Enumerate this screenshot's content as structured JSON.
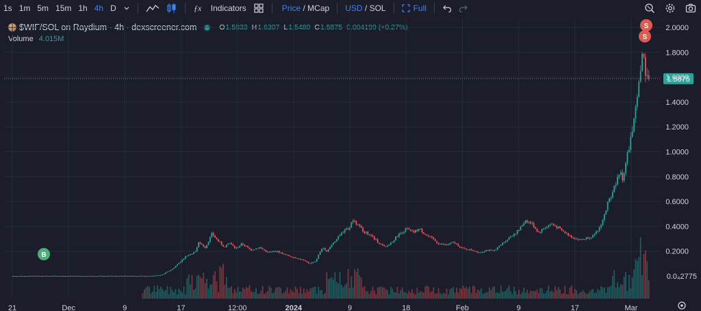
{
  "toolbar": {
    "timeframes": [
      {
        "label": "1s",
        "active": false
      },
      {
        "label": "1m",
        "active": false
      },
      {
        "label": "5m",
        "active": false
      },
      {
        "label": "15m",
        "active": false
      },
      {
        "label": "1h",
        "active": false
      },
      {
        "label": "4h",
        "active": true
      },
      {
        "label": "D",
        "active": false
      }
    ],
    "indicators_label": "Indicators",
    "price_label": "Price",
    "slash1": "/",
    "mcap_label": "MCap",
    "usd_label": "USD",
    "slash2": "/",
    "sol_label": "SOL",
    "full_label": "Full",
    "icons": [
      "chevron-down-icon",
      "line-chart-icon",
      "candles-icon",
      "fx-icon",
      "layout-grid-icon",
      "expand-icon",
      "undo-icon",
      "redo-icon",
      "zoom-icon",
      "gear-icon",
      "camera-icon"
    ]
  },
  "legend": {
    "pair": "$WIF/SOL on Raydium · 4h · dexscreener.com",
    "o_label": "O",
    "o_value": "1.5833",
    "h_label": "H",
    "h_value": "1.6307",
    "l_label": "L",
    "l_value": "1.5480",
    "c_label": "C",
    "c_value": "1.5875",
    "change": "0.004199 (+0.27%)"
  },
  "volume": {
    "label": "Volume",
    "value": "4.015M"
  },
  "markers": {
    "buy": "B",
    "sell": "S"
  },
  "colors": {
    "background": "#1b1d2b",
    "up": "#26a69a",
    "down": "#ef5350",
    "price_tag": "#26a69a",
    "active": "#3b82f6"
  },
  "chart_data": {
    "type": "candlestick",
    "title": "$WIF/SOL on Raydium · 4h · dexscreener.com",
    "ylim": [
      0,
      2.1
    ],
    "y_ticks": [
      {
        "value": 2.0,
        "label": "2.0000"
      },
      {
        "value": 1.8,
        "label": "1.8000"
      },
      {
        "value": 1.6,
        "label": "1.6000"
      },
      {
        "value": 1.4,
        "label": "1.4000"
      },
      {
        "value": 1.2,
        "label": "1.2000"
      },
      {
        "value": 1.0,
        "label": "1.0000"
      },
      {
        "value": 0.8,
        "label": "0.8000"
      },
      {
        "value": 0.6,
        "label": "0.6000"
      },
      {
        "value": 0.4,
        "label": "0.4000"
      },
      {
        "value": 0.2,
        "label": "0.2000"
      }
    ],
    "bottom_label": {
      "value": 0.0,
      "label": "0.0₄2775"
    },
    "current_price": {
      "value": 1.5875,
      "label": "1.5875"
    },
    "x_ticks": [
      {
        "label": "21",
        "bold": false
      },
      {
        "label": "Dec",
        "bold": false
      },
      {
        "label": "9",
        "bold": false
      },
      {
        "label": "17",
        "bold": false
      },
      {
        "label": "12:00",
        "bold": false
      },
      {
        "label": "2024",
        "bold": true
      },
      {
        "label": "9",
        "bold": false
      },
      {
        "label": "18",
        "bold": false
      },
      {
        "label": "Feb",
        "bold": false
      },
      {
        "label": "9",
        "bold": false
      },
      {
        "label": "17",
        "bold": false
      },
      {
        "label": "Mar",
        "bold": false
      }
    ],
    "series": [
      {
        "name": "price",
        "points": [
          [
            0.0,
            0.0
          ],
          [
            0.32,
            0.0
          ],
          [
            0.345,
            0.01
          ],
          [
            0.37,
            0.06
          ],
          [
            0.385,
            0.11
          ],
          [
            0.4,
            0.16
          ],
          [
            0.42,
            0.19
          ],
          [
            0.43,
            0.27
          ],
          [
            0.445,
            0.23
          ],
          [
            0.46,
            0.34
          ],
          [
            0.475,
            0.28
          ],
          [
            0.49,
            0.23
          ],
          [
            0.5,
            0.27
          ],
          [
            0.515,
            0.22
          ],
          [
            0.53,
            0.26
          ],
          [
            0.55,
            0.21
          ],
          [
            0.57,
            0.23
          ],
          [
            0.59,
            0.19
          ],
          [
            0.61,
            0.2
          ],
          [
            0.63,
            0.17
          ],
          [
            0.65,
            0.15
          ],
          [
            0.67,
            0.13
          ],
          [
            0.685,
            0.1
          ],
          [
            0.7,
            0.12
          ],
          [
            0.715,
            0.23
          ],
          [
            0.725,
            0.19
          ],
          [
            0.74,
            0.27
          ],
          [
            0.755,
            0.32
          ],
          [
            0.77,
            0.39
          ],
          [
            0.775,
            0.37
          ],
          [
            0.785,
            0.45
          ],
          [
            0.8,
            0.4
          ],
          [
            0.815,
            0.35
          ],
          [
            0.83,
            0.32
          ],
          [
            0.845,
            0.27
          ],
          [
            0.86,
            0.23
          ],
          [
            0.875,
            0.27
          ],
          [
            0.89,
            0.33
          ],
          [
            0.91,
            0.38
          ],
          [
            0.925,
            0.35
          ],
          [
            0.94,
            0.38
          ],
          [
            0.955,
            0.33
          ],
          [
            0.97,
            0.3
          ],
          [
            0.985,
            0.26
          ],
          [
            1.0,
            0.25
          ],
          [
            1.02,
            0.27
          ],
          [
            1.04,
            0.22
          ],
          [
            1.06,
            0.21
          ],
          [
            1.08,
            0.19
          ],
          [
            1.095,
            0.21
          ],
          [
            1.11,
            0.2
          ],
          [
            1.125,
            0.24
          ],
          [
            1.14,
            0.29
          ],
          [
            1.155,
            0.33
          ],
          [
            1.17,
            0.37
          ],
          [
            1.185,
            0.45
          ],
          [
            1.2,
            0.42
          ],
          [
            1.215,
            0.35
          ],
          [
            1.23,
            0.39
          ],
          [
            1.245,
            0.42
          ],
          [
            1.26,
            0.39
          ],
          [
            1.275,
            0.35
          ],
          [
            1.29,
            0.32
          ],
          [
            1.31,
            0.29
          ],
          [
            1.33,
            0.31
          ],
          [
            1.345,
            0.33
          ],
          [
            1.355,
            0.38
          ],
          [
            1.365,
            0.46
          ],
          [
            1.375,
            0.58
          ],
          [
            1.385,
            0.67
          ],
          [
            1.395,
            0.75
          ],
          [
            1.405,
            0.84
          ],
          [
            1.41,
            0.78
          ],
          [
            1.415,
            0.87
          ],
          [
            1.425,
            1.05
          ],
          [
            1.435,
            1.22
          ],
          [
            1.442,
            1.38
          ],
          [
            1.448,
            1.55
          ],
          [
            1.453,
            1.72
          ],
          [
            1.458,
            1.82
          ],
          [
            1.462,
            1.66
          ],
          [
            1.467,
            1.58
          ],
          [
            1.472,
            1.5875
          ]
        ]
      }
    ]
  }
}
